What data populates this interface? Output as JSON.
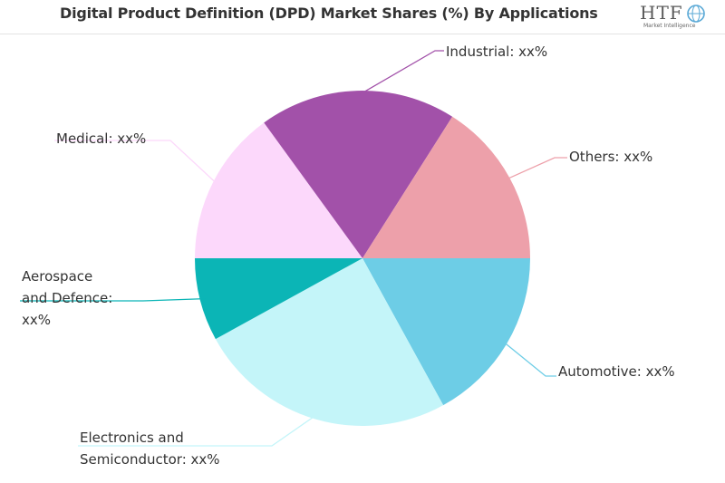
{
  "header": {
    "title": "Digital Product Definition (DPD) Market Shares (%) By Applications",
    "logo_text": "HTF",
    "logo_subtext": "Market Intelligence"
  },
  "chart_data": {
    "type": "pie",
    "title": "Digital Product Definition (DPD) Market Shares (%) By Applications",
    "slices": [
      {
        "name": "Automotive",
        "label": [
          "Automotive: xx%"
        ],
        "value": 17,
        "color": "#6dcde6"
      },
      {
        "name": "Electronics and Semiconductor",
        "label": [
          "Electronics and",
          "Semiconductor: xx%"
        ],
        "value": 25,
        "color": "#c4f5f9"
      },
      {
        "name": "Aerospace and Defence",
        "label": [
          "Aerospace",
          "and Defence:",
          "xx%"
        ],
        "value": 8,
        "color": "#0bb5b6"
      },
      {
        "name": "Medical",
        "label": [
          "Medical: xx%"
        ],
        "value": 15,
        "color": "#fcd8fb"
      },
      {
        "name": "Industrial",
        "label": [
          "Industrial: xx%"
        ],
        "value": 19,
        "color": "#a251a9"
      },
      {
        "name": "Others",
        "label": [
          "Others: xx%"
        ],
        "value": 16,
        "color": "#eda0aa"
      }
    ]
  }
}
